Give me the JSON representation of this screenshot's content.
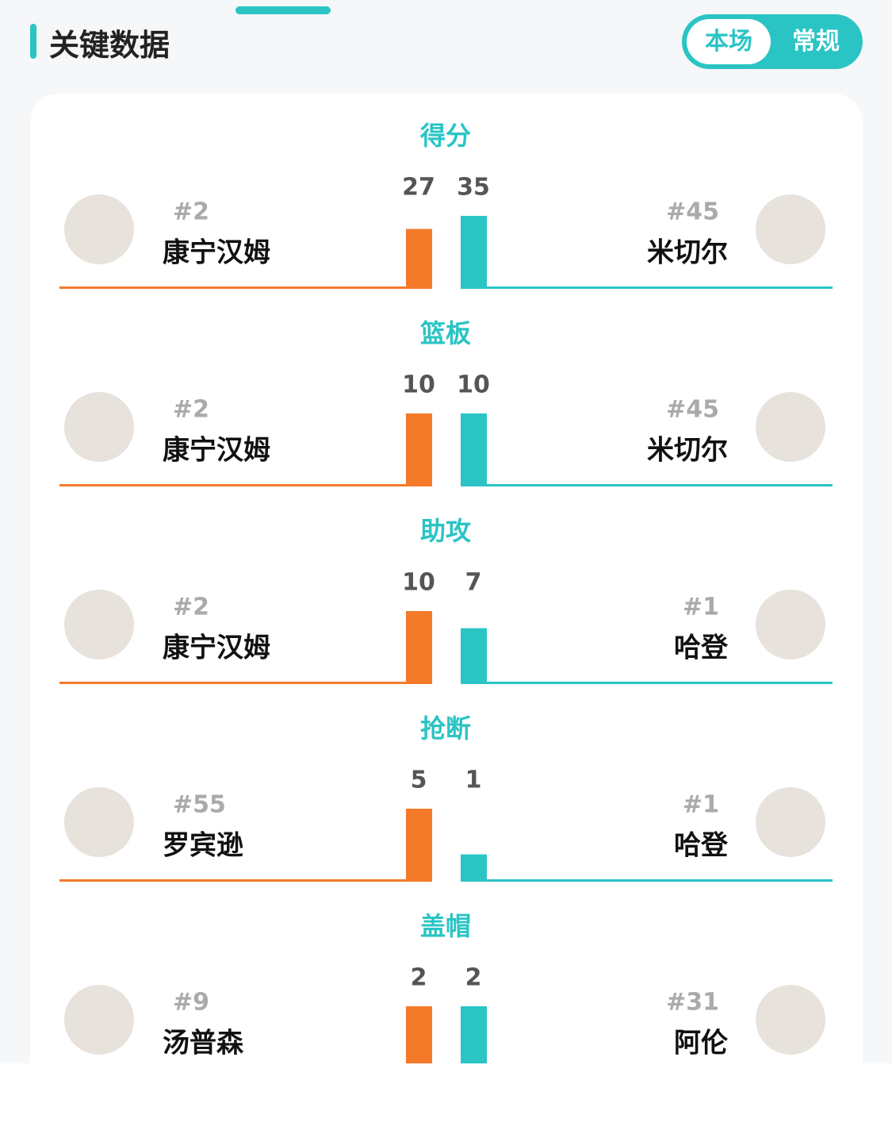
{
  "header": {
    "title": "关键数据",
    "tabs": [
      "本场",
      "常规"
    ]
  },
  "stats": [
    {
      "label": "得分",
      "left": {
        "number": "#2",
        "name": "康宁汉姆",
        "value": 27
      },
      "right": {
        "number": "#45",
        "name": "米切尔",
        "value": 35
      }
    },
    {
      "label": "篮板",
      "left": {
        "number": "#2",
        "name": "康宁汉姆",
        "value": 10
      },
      "right": {
        "number": "#45",
        "name": "米切尔",
        "value": 10
      }
    },
    {
      "label": "助攻",
      "left": {
        "number": "#2",
        "name": "康宁汉姆",
        "value": 10
      },
      "right": {
        "number": "#1",
        "name": "哈登",
        "value": 7
      }
    },
    {
      "label": "抢断",
      "left": {
        "number": "#55",
        "name": "罗宾逊",
        "value": 5
      },
      "right": {
        "number": "#1",
        "name": "哈登",
        "value": 1
      }
    },
    {
      "label": "盖帽",
      "left": {
        "number": "#9",
        "name": "汤普森",
        "value": 2
      },
      "right": {
        "number": "#31",
        "name": "阿伦",
        "value": 2
      }
    }
  ]
}
